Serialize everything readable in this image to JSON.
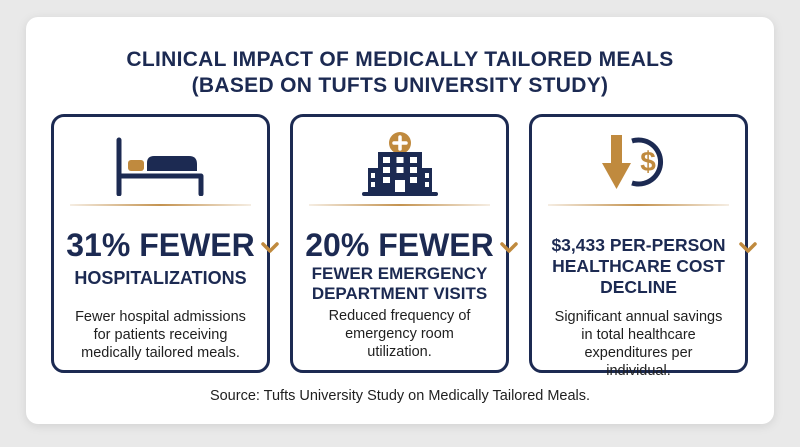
{
  "title": {
    "line1": "CLINICAL IMPACT OF MEDICALLY TAILORED MEALS",
    "line2": "(BASED ON TUFTS UNIVERSITY STUDY)"
  },
  "cards": [
    {
      "icon": "hospital-bed-icon",
      "headline": "31% FEWER",
      "subheadline": [
        "HOSPITALIZATIONS"
      ],
      "description": [
        "Fewer hospital admissions",
        "for patients receiving",
        "medically tailored meals."
      ]
    },
    {
      "icon": "hospital-building-icon",
      "headline": "20% FEWER",
      "subheadline": [
        "FEWER EMERGENCY",
        "DEPARTMENT VISITS"
      ],
      "description": [
        "Reduced frequency of",
        "emergency room",
        "utilization."
      ]
    },
    {
      "icon": "down-arrow-dollar-icon",
      "headline": "",
      "subheadline": [
        "$3,433 PER-PERSON",
        "HEALTHCARE COST",
        "DECLINE"
      ],
      "description": [
        "Significant annual savings",
        "in total healthcare",
        "expenditures per",
        "individual."
      ]
    }
  ],
  "source": "Source: Tufts University Study on Medically Tailored Meals.",
  "colors": {
    "navy": "#1c2a52",
    "gold": "#c08a3e",
    "text": "#1f1f1f"
  }
}
